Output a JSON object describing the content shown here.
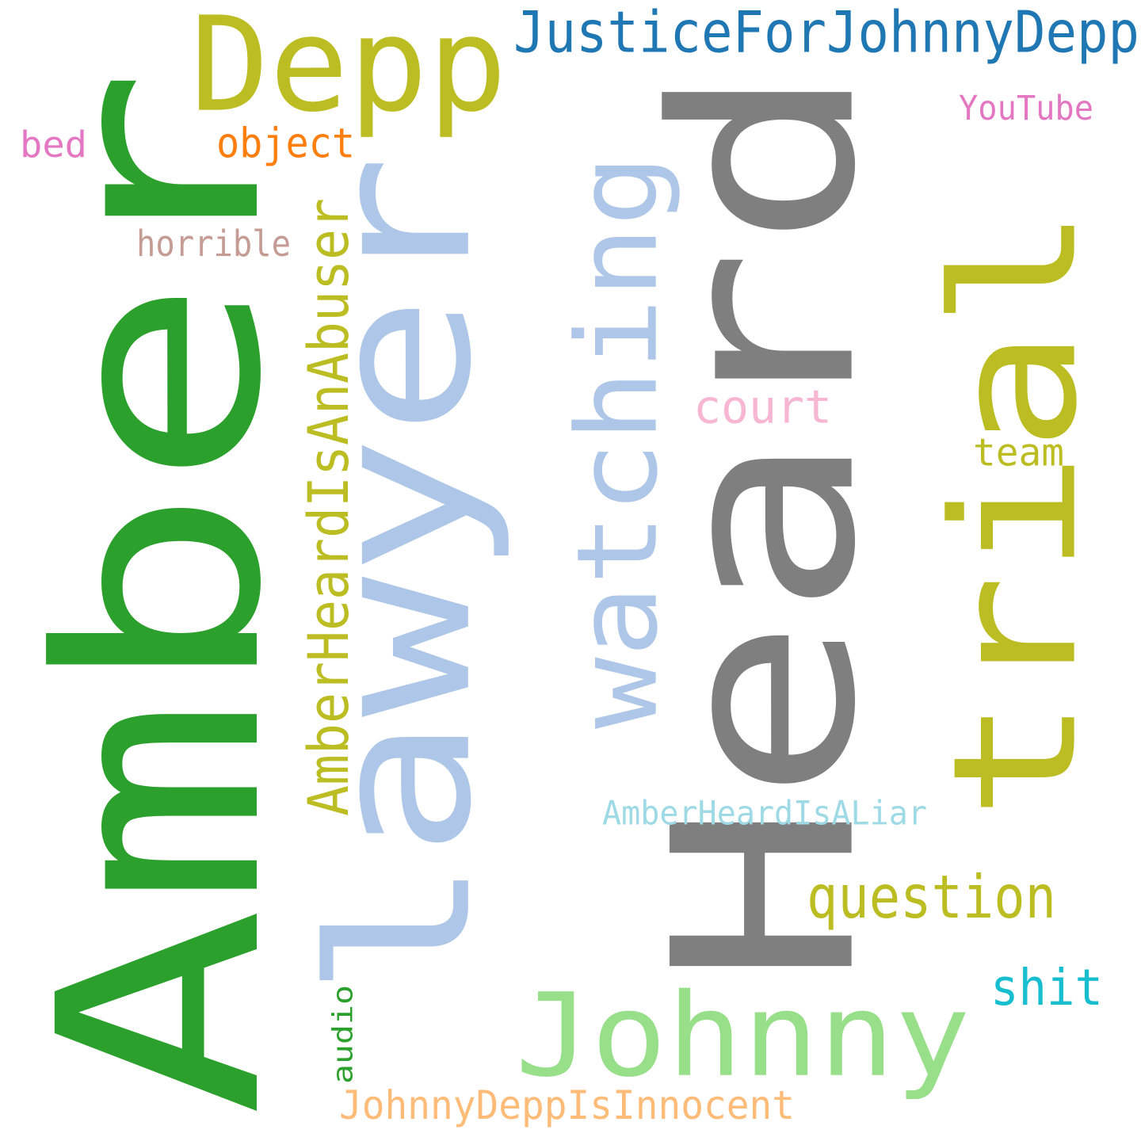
{
  "words": [
    {
      "id": "amber",
      "text": "Amber",
      "color": "#2ca02c"
    },
    {
      "id": "heard",
      "text": "Heard",
      "color": "#7f7f7f"
    },
    {
      "id": "lawyer",
      "text": "lawyer",
      "color": "#aec7e8"
    },
    {
      "id": "trial",
      "text": "trial",
      "color": "#bcbd22"
    },
    {
      "id": "watching",
      "text": "watching",
      "color": "#aec7e8"
    },
    {
      "id": "depp",
      "text": "Depp",
      "color": "#bcbd22"
    },
    {
      "id": "johnny",
      "text": "Johnny",
      "color": "#98df8a"
    },
    {
      "id": "amberheardisanabuser",
      "text": "AmberHeardIsAnAbuser",
      "color": "#bcbd22"
    },
    {
      "id": "justiceforjohnnydepp",
      "text": "JusticeForJohnnyDepp",
      "color": "#1f77b4"
    },
    {
      "id": "question",
      "text": "question",
      "color": "#bcbd22"
    },
    {
      "id": "court",
      "text": "court",
      "color": "#f7b6d2"
    },
    {
      "id": "shit",
      "text": "shit",
      "color": "#17becf"
    },
    {
      "id": "johnnydeppisinnocent",
      "text": "JohnnyDeppIsInnocent",
      "color": "#ffbb78"
    },
    {
      "id": "amberheardisaliar",
      "text": "AmberHeardIsALiar",
      "color": "#9edae5"
    },
    {
      "id": "object",
      "text": "object",
      "color": "#ff7f0e"
    },
    {
      "id": "horrible",
      "text": "horrible",
      "color": "#c49c94"
    },
    {
      "id": "team",
      "text": "team",
      "color": "#bcbd22"
    },
    {
      "id": "youtube",
      "text": "YouTube",
      "color": "#e377c2"
    },
    {
      "id": "bed",
      "text": "bed",
      "color": "#e377c2"
    },
    {
      "id": "audio",
      "text": "audio",
      "color": "#2ca02c"
    }
  ]
}
